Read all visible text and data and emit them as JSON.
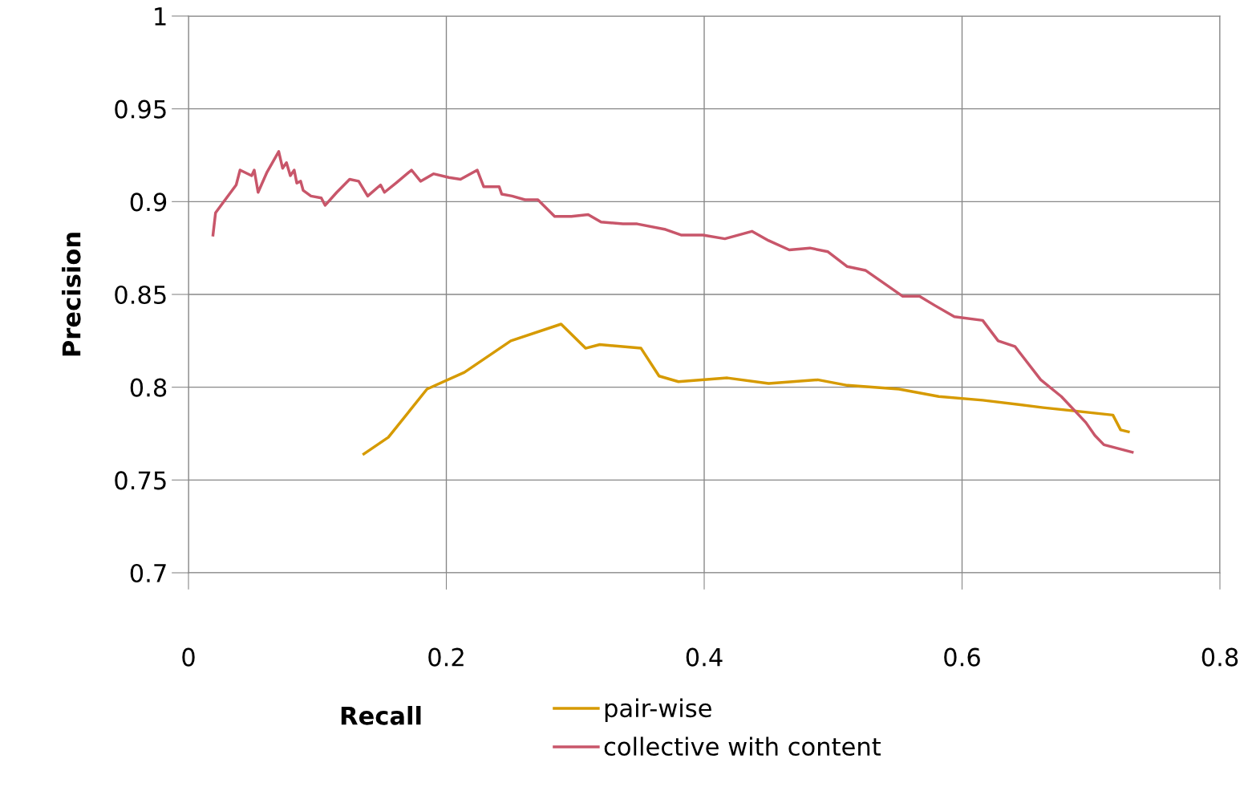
{
  "chart_data": {
    "type": "line",
    "xlabel": "Recall",
    "ylabel": "Precision",
    "xlim": [
      0,
      0.8
    ],
    "ylim": [
      0.7,
      1
    ],
    "xticks": [
      {
        "value": 0,
        "label": "0"
      },
      0.2,
      0.4,
      0.6,
      0.8
    ],
    "yticks": [
      0.7,
      0.75,
      0.8,
      0.85,
      0.9,
      0.95,
      {
        "value": 1,
        "label": "1"
      }
    ],
    "grid": true,
    "legend": "bottom",
    "marker": "none",
    "line_style": "solid",
    "series": [
      {
        "name": "pair-wise",
        "color": "#d69a00",
        "x": [
          0.136,
          0.155,
          0.185,
          0.214,
          0.25,
          0.289,
          0.308,
          0.319,
          0.351,
          0.365,
          0.38,
          0.418,
          0.45,
          0.488,
          0.511,
          0.551,
          0.582,
          0.616,
          0.663,
          0.717,
          0.723,
          0.729
        ],
        "values": [
          0.764,
          0.773,
          0.799,
          0.808,
          0.825,
          0.834,
          0.821,
          0.823,
          0.821,
          0.806,
          0.803,
          0.805,
          0.802,
          0.804,
          0.801,
          0.799,
          0.795,
          0.793,
          0.789,
          0.785,
          0.777,
          0.776
        ]
      },
      {
        "name": "collective with content",
        "color": "#c8566a",
        "x": [
          0.019,
          0.021,
          0.037,
          0.04,
          0.049,
          0.051,
          0.054,
          0.061,
          0.07,
          0.073,
          0.076,
          0.079,
          0.082,
          0.084,
          0.087,
          0.089,
          0.095,
          0.103,
          0.106,
          0.115,
          0.125,
          0.132,
          0.139,
          0.149,
          0.152,
          0.161,
          0.173,
          0.18,
          0.19,
          0.202,
          0.211,
          0.224,
          0.229,
          0.241,
          0.243,
          0.251,
          0.261,
          0.271,
          0.284,
          0.297,
          0.31,
          0.32,
          0.337,
          0.348,
          0.37,
          0.382,
          0.399,
          0.416,
          0.437,
          0.45,
          0.466,
          0.482,
          0.496,
          0.511,
          0.525,
          0.554,
          0.567,
          0.579,
          0.594,
          0.616,
          0.628,
          0.641,
          0.661,
          0.677,
          0.696,
          0.703,
          0.71,
          0.732
        ],
        "values": [
          0.882,
          0.894,
          0.909,
          0.917,
          0.914,
          0.917,
          0.905,
          0.916,
          0.927,
          0.918,
          0.921,
          0.914,
          0.917,
          0.91,
          0.911,
          0.906,
          0.903,
          0.902,
          0.898,
          0.905,
          0.912,
          0.911,
          0.903,
          0.909,
          0.905,
          0.91,
          0.917,
          0.911,
          0.915,
          0.913,
          0.912,
          0.917,
          0.908,
          0.908,
          0.904,
          0.903,
          0.901,
          0.901,
          0.892,
          0.892,
          0.893,
          0.889,
          0.888,
          0.888,
          0.885,
          0.882,
          0.882,
          0.88,
          0.884,
          0.879,
          0.874,
          0.875,
          0.873,
          0.865,
          0.863,
          0.849,
          0.849,
          0.844,
          0.838,
          0.836,
          0.825,
          0.822,
          0.804,
          0.795,
          0.781,
          0.774,
          0.769,
          0.765
        ]
      }
    ]
  }
}
